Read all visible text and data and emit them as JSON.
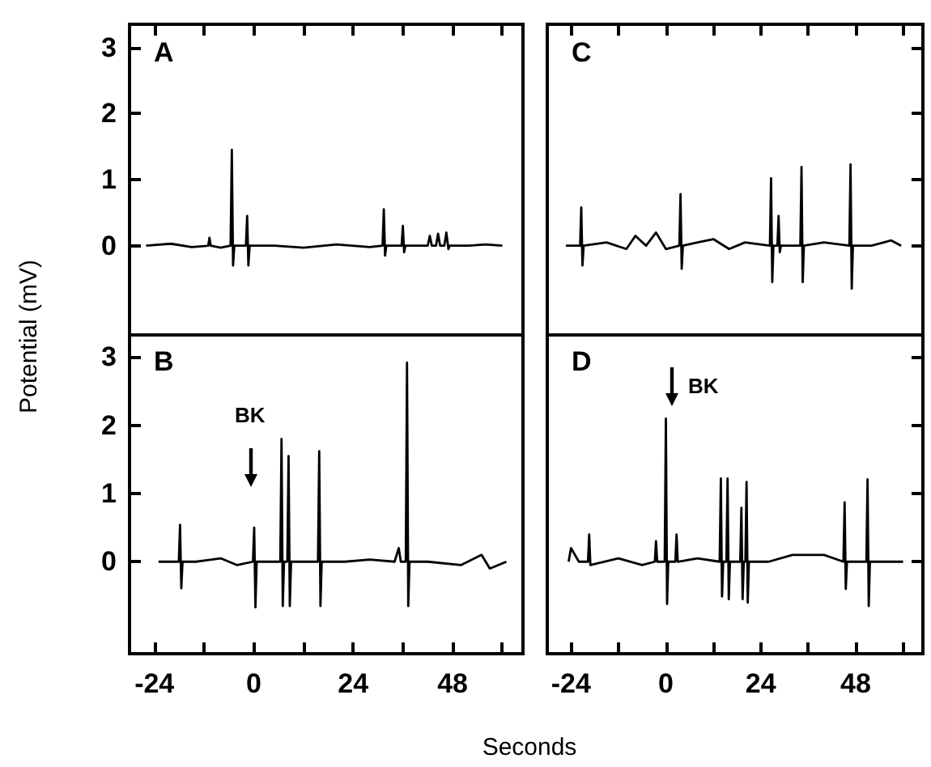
{
  "chart_data": [
    {
      "type": "line",
      "title": "A",
      "ylabel": "Potential (mV)",
      "tick_labels": "y",
      "xlim": [
        -30,
        65
      ],
      "ylim": [
        -1.35,
        3.35
      ],
      "xticks": [
        -24,
        {
          "value": -12,
          "label": null
        },
        0,
        {
          "value": 12,
          "label": null
        },
        24,
        {
          "value": 36,
          "label": null
        },
        48,
        {
          "value": 60,
          "label": null
        }
      ],
      "yticks": [
        0,
        1,
        2,
        3
      ],
      "legend": false,
      "marker": "none",
      "series": [
        {
          "color": "#000000",
          "x": [
            -26,
            -20,
            -15,
            -11,
            -10.7,
            -10.4,
            -8,
            -5.6,
            -5.3,
            -5,
            -4.7,
            -3,
            -1.9,
            -1.6,
            -1.3,
            -1,
            5,
            12,
            20,
            28,
            31.1,
            31.4,
            31.7,
            32,
            34,
            35.7,
            36,
            36.3,
            36.6,
            40,
            42,
            42.5,
            43,
            44,
            44.5,
            45,
            46,
            46.5,
            47,
            47.3,
            52,
            56,
            60
          ],
          "values": [
            0,
            0.03,
            -0.02,
            0,
            0.12,
            0,
            -0.03,
            0,
            1.45,
            -0.3,
            0,
            0,
            0,
            0.45,
            -0.3,
            0,
            0,
            -0.03,
            0.02,
            -0.02,
            0,
            0.55,
            -0.15,
            0,
            0,
            0,
            0.3,
            -0.1,
            0,
            0,
            0,
            0.15,
            0,
            0,
            0.18,
            0,
            0,
            0.2,
            -0.05,
            0,
            0,
            0.02,
            0
          ]
        }
      ]
    },
    {
      "type": "line",
      "title": "B",
      "xlabel": "Seconds",
      "xlim": [
        -30,
        65
      ],
      "ylim": [
        -1.35,
        3.35
      ],
      "xticks": [
        -24,
        {
          "value": -12,
          "label": null
        },
        0,
        {
          "value": 12,
          "label": null
        },
        24,
        {
          "value": 36,
          "label": null
        },
        48,
        {
          "value": 60,
          "label": null
        }
      ],
      "yticks": [
        0,
        1,
        2,
        3
      ],
      "legend": false,
      "marker": "none",
      "annotations": [
        "BK"
      ],
      "series": [
        {
          "color": "#000000",
          "x": [
            -23,
            -18.1,
            -17.8,
            -17.5,
            -17.2,
            -14,
            -8,
            -4,
            -0.2,
            0.1,
            0.4,
            0.7,
            3,
            6.4,
            6.7,
            7,
            7.3,
            8.1,
            8.4,
            8.7,
            9,
            12,
            15.5,
            15.8,
            16.1,
            16.4,
            22,
            28,
            34,
            35,
            35.5,
            36.7,
            37,
            37.3,
            37.6,
            42,
            50,
            55,
            57,
            61
          ],
          "values": [
            0,
            0,
            0.54,
            -0.39,
            0,
            0,
            0.05,
            -0.05,
            0,
            0.5,
            -0.67,
            0,
            0,
            0,
            1.8,
            -0.65,
            0,
            0,
            1.55,
            -0.65,
            0,
            0,
            0,
            1.62,
            -0.65,
            0,
            0,
            0.03,
            0,
            0.2,
            0,
            0,
            2.92,
            -0.65,
            0,
            0,
            -0.05,
            0.1,
            -0.1,
            0
          ]
        }
      ]
    },
    {
      "type": "line",
      "title": "C",
      "tick_labels": false,
      "xlim": [
        -30,
        65
      ],
      "ylim": [
        -1.35,
        3.35
      ],
      "xticks": [
        -24,
        {
          "value": -12,
          "label": null
        },
        0,
        {
          "value": 12,
          "label": null
        },
        24,
        {
          "value": 36,
          "label": null
        },
        48,
        {
          "value": 60,
          "label": null
        }
      ],
      "yticks": [
        0,
        1,
        2,
        3
      ],
      "legend": false,
      "marker": "none",
      "series": [
        {
          "color": "#000000",
          "x": [
            -25.3,
            -21.7,
            -21.4,
            -21.1,
            -20.8,
            -15,
            -10,
            -7.7,
            -5,
            -2.5,
            0,
            3.4,
            3.7,
            4,
            4.3,
            8,
            12,
            16,
            20,
            26.3,
            26.6,
            26.9,
            27.2,
            28.2,
            28.5,
            28.8,
            29.1,
            32,
            34,
            34.3,
            34.6,
            34.9,
            40,
            46.4,
            46.7,
            47,
            47.3,
            52,
            57,
            59.5
          ],
          "values": [
            0,
            0,
            0.58,
            -0.3,
            0,
            0.05,
            -0.05,
            0.15,
            0,
            0.2,
            -0.05,
            0,
            0.78,
            -0.35,
            0,
            0.05,
            0.1,
            -0.05,
            0.05,
            0,
            1.02,
            -0.55,
            0,
            0,
            0.45,
            -0.1,
            0,
            0,
            0,
            1.19,
            -0.55,
            0,
            0.05,
            0,
            1.23,
            -0.65,
            0,
            0,
            0.08,
            0
          ]
        }
      ]
    },
    {
      "type": "line",
      "title": "D",
      "tick_labels": "x",
      "xlim": [
        -30,
        65
      ],
      "ylim": [
        -1.35,
        3.35
      ],
      "xticks": [
        -24,
        {
          "value": -12,
          "label": null
        },
        0,
        {
          "value": 12,
          "label": null
        },
        24,
        {
          "value": 36,
          "label": null
        },
        48,
        {
          "value": 60,
          "label": null
        }
      ],
      "yticks": [
        0,
        1,
        2,
        3
      ],
      "legend": false,
      "marker": "none",
      "annotations": [
        "BK"
      ],
      "series": [
        {
          "color": "#000000",
          "x": [
            -24.6,
            -24,
            -22,
            -19.7,
            -19.4,
            -19.1,
            -12,
            -6,
            -2.8,
            -2.5,
            -2.2,
            -0.3,
            0,
            0.3,
            0.6,
            2.4,
            2.7,
            3,
            8,
            13.6,
            13.9,
            14.2,
            14.5,
            15.3,
            15.6,
            15.9,
            16.2,
            18.8,
            19.1,
            19.4,
            19.7,
            20.1,
            20.4,
            20.7,
            21,
            26,
            32,
            40,
            44.9,
            45.2,
            45.5,
            45.8,
            50.7,
            51,
            51.3,
            51.6,
            55,
            60
          ],
          "values": [
            0,
            0.2,
            0,
            0,
            0.4,
            -0.05,
            0.05,
            -0.05,
            0,
            0.3,
            0,
            0,
            2.1,
            -0.62,
            0,
            0,
            0.4,
            0,
            0.05,
            0,
            1.22,
            -0.51,
            0,
            0,
            1.22,
            -0.55,
            0,
            0,
            0.79,
            -0.55,
            0,
            0,
            1.17,
            -0.6,
            0,
            0,
            0.1,
            0.1,
            0,
            0.87,
            -0.4,
            0,
            0,
            1.21,
            -0.65,
            0,
            0,
            0
          ]
        }
      ]
    }
  ]
}
